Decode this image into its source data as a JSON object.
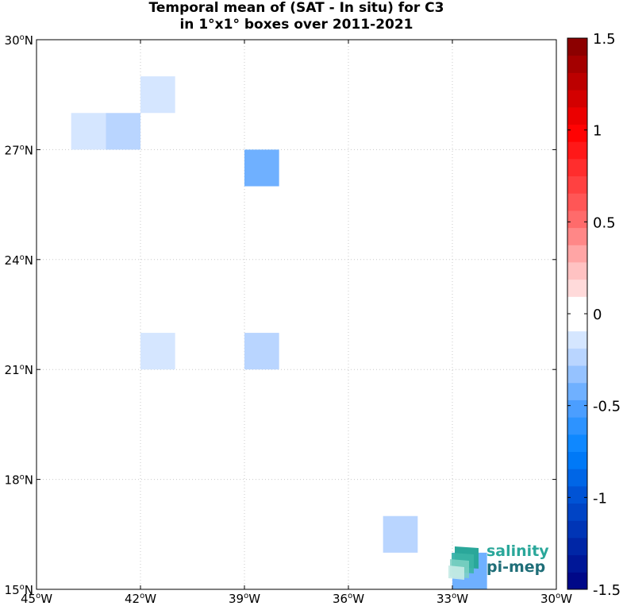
{
  "chart_data": {
    "type": "heatmap",
    "title": [
      "Temporal mean of (SAT - In situ) for C3",
      "in 1°x1° boxes over 2011-2021"
    ],
    "x_axis": {
      "range": [
        -45,
        -30
      ],
      "ticks": [
        -45,
        -42,
        -39,
        -36,
        -33,
        -30
      ],
      "tick_labels": [
        "45°W",
        "42°W",
        "39°W",
        "36°W",
        "33°W",
        "30°W"
      ]
    },
    "y_axis": {
      "range": [
        15,
        30
      ],
      "ticks": [
        15,
        18,
        21,
        24,
        27,
        30
      ],
      "tick_labels": [
        "15°N",
        "18°N",
        "21°N",
        "24°N",
        "27°N",
        "30°N"
      ]
    },
    "grid": "dotted",
    "cells": [
      {
        "lon": -42,
        "lat": 28,
        "value": -0.1
      },
      {
        "lon": -44,
        "lat": 27,
        "value": -0.1
      },
      {
        "lon": -43,
        "lat": 27,
        "value": -0.25
      },
      {
        "lon": -39,
        "lat": 26,
        "value": -0.4
      },
      {
        "lon": -42,
        "lat": 21,
        "value": -0.1
      },
      {
        "lon": -39,
        "lat": 21,
        "value": -0.25
      },
      {
        "lon": -35,
        "lat": 16,
        "value": -0.25
      },
      {
        "lon": -33,
        "lat": 15,
        "value": -0.45
      }
    ],
    "colorbar": {
      "range": [
        -1.5,
        1.5
      ],
      "levels": 32,
      "ticks": [
        -1.5,
        -1,
        -0.5,
        0,
        0.5,
        1,
        1.5
      ],
      "tick_labels": [
        "-1.5",
        "-1",
        "-0.5",
        "0",
        "0.5",
        "1",
        "1.5"
      ]
    }
  },
  "logo": {
    "line1": "salinity",
    "line2": "pi-mep"
  }
}
